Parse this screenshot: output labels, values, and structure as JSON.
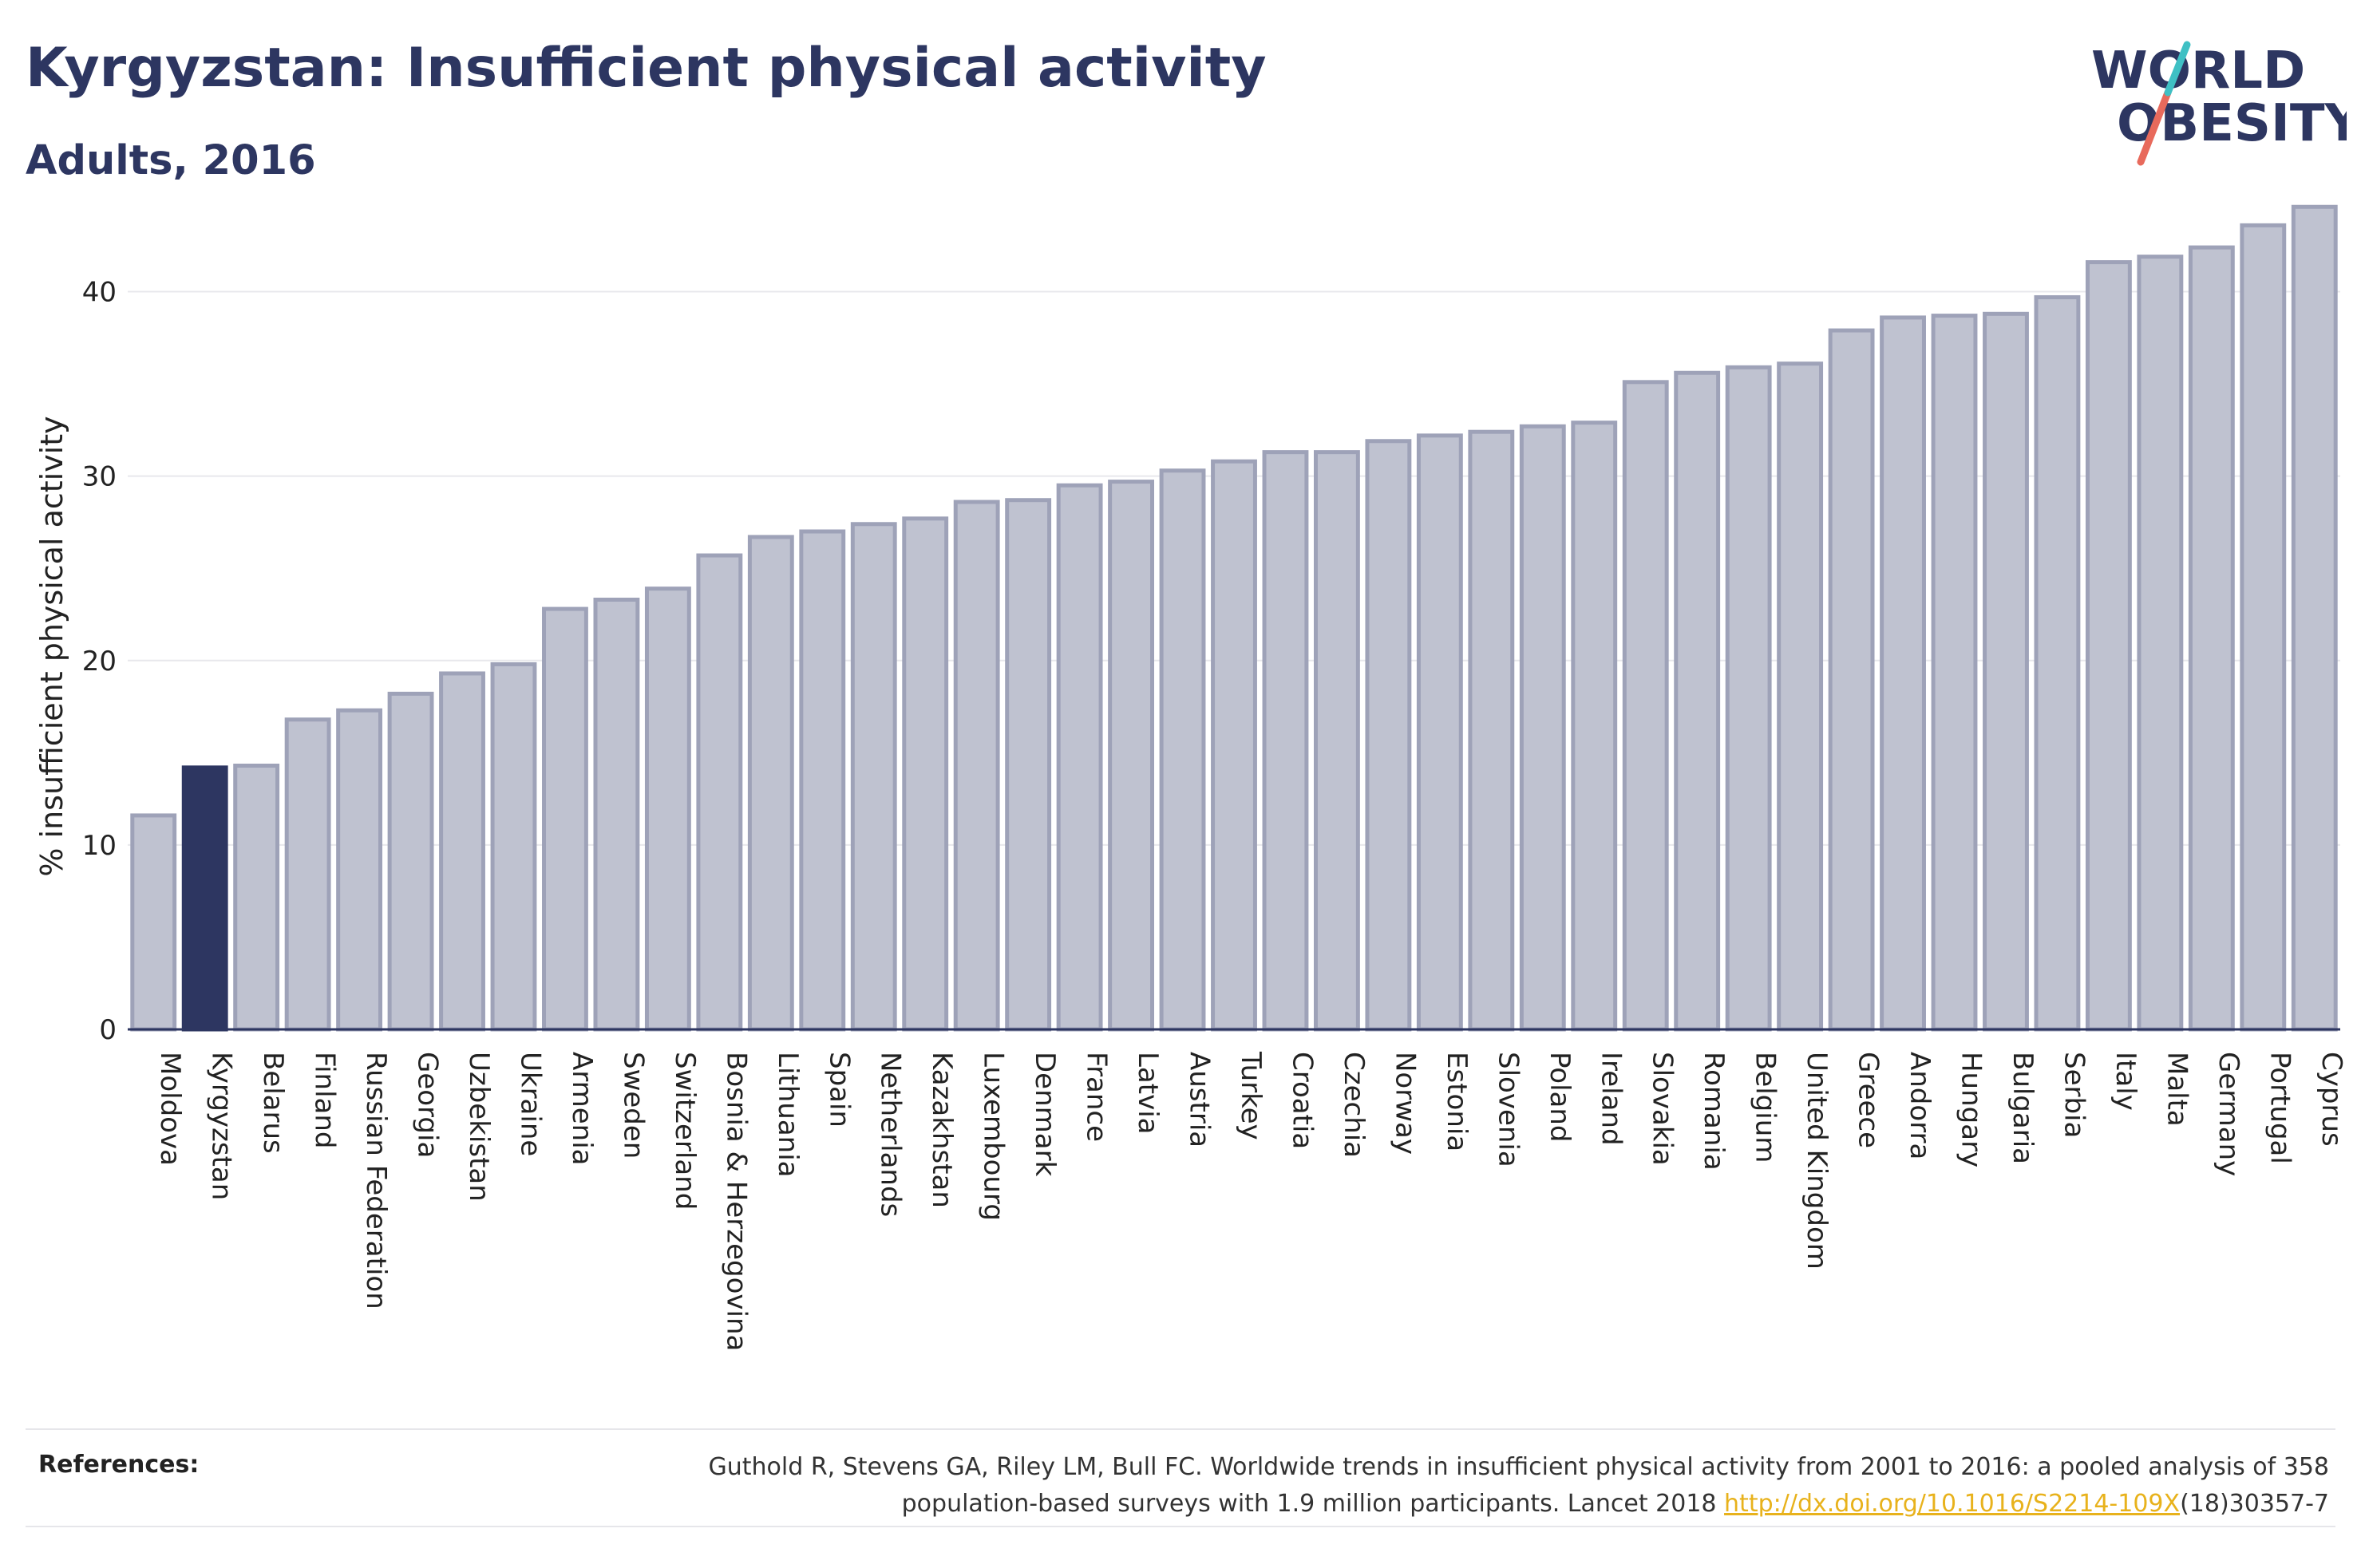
{
  "header": {
    "title": "Kyrgyzstan: Insufficient physical activity",
    "subtitle": "Adults, 2016"
  },
  "logo": {
    "line1": "WORLD",
    "line2": "OBESITY"
  },
  "chart_data": {
    "type": "bar",
    "categories": [
      "Moldova",
      "Kyrgyzstan",
      "Belarus",
      "Finland",
      "Russian Federation",
      "Georgia",
      "Uzbekistan",
      "Ukraine",
      "Armenia",
      "Sweden",
      "Switzerland",
      "Bosnia & Herzegovina",
      "Lithuania",
      "Spain",
      "Netherlands",
      "Kazakhstan",
      "Luxembourg",
      "Denmark",
      "France",
      "Latvia",
      "Austria",
      "Turkey",
      "Croatia",
      "Czechia",
      "Norway",
      "Estonia",
      "Slovenia",
      "Poland",
      "Ireland",
      "Slovakia",
      "Romania",
      "Belgium",
      "United Kingdom",
      "Greece",
      "Andorra",
      "Hungary",
      "Bulgaria",
      "Serbia",
      "Italy",
      "Malta",
      "Germany",
      "Portugal",
      "Cyprus"
    ],
    "values": [
      11.6,
      14.2,
      14.3,
      16.8,
      17.3,
      18.2,
      19.3,
      19.8,
      22.8,
      23.3,
      23.9,
      25.7,
      26.7,
      27.0,
      27.4,
      27.7,
      28.6,
      28.7,
      29.5,
      29.7,
      30.3,
      30.8,
      31.3,
      31.3,
      31.9,
      32.2,
      32.4,
      32.7,
      32.9,
      35.1,
      35.6,
      35.9,
      36.1,
      37.9,
      38.6,
      38.7,
      38.8,
      39.7,
      41.6,
      41.9,
      42.4,
      43.6,
      44.6
    ],
    "highlight": "Kyrgyzstan",
    "ylabel": "% insufficient physical activity",
    "xlabel": "",
    "ylim": [
      0,
      45
    ],
    "yticks": [
      0,
      10,
      20,
      30,
      40
    ],
    "grid": true,
    "colors": {
      "bar": "#bfc2d0",
      "bar_stroke": "#9ea2b8",
      "highlight": "#2d3661",
      "grid": "#e8e8ec",
      "axis": "#2d3661"
    }
  },
  "references": {
    "label": "References:",
    "text_line1": "Guthold R, Stevens GA, Riley LM, Bull FC. Worldwide trends in insufficient physical activity from 2001 to 2016: a pooled analysis of 358",
    "text_line2": "population-based surveys with 1.9 million participants. Lancet 2018 ",
    "link": "http://dx.doi.org/10.1016/S2214-109X",
    "text_after_link": "(18)30357-7"
  }
}
